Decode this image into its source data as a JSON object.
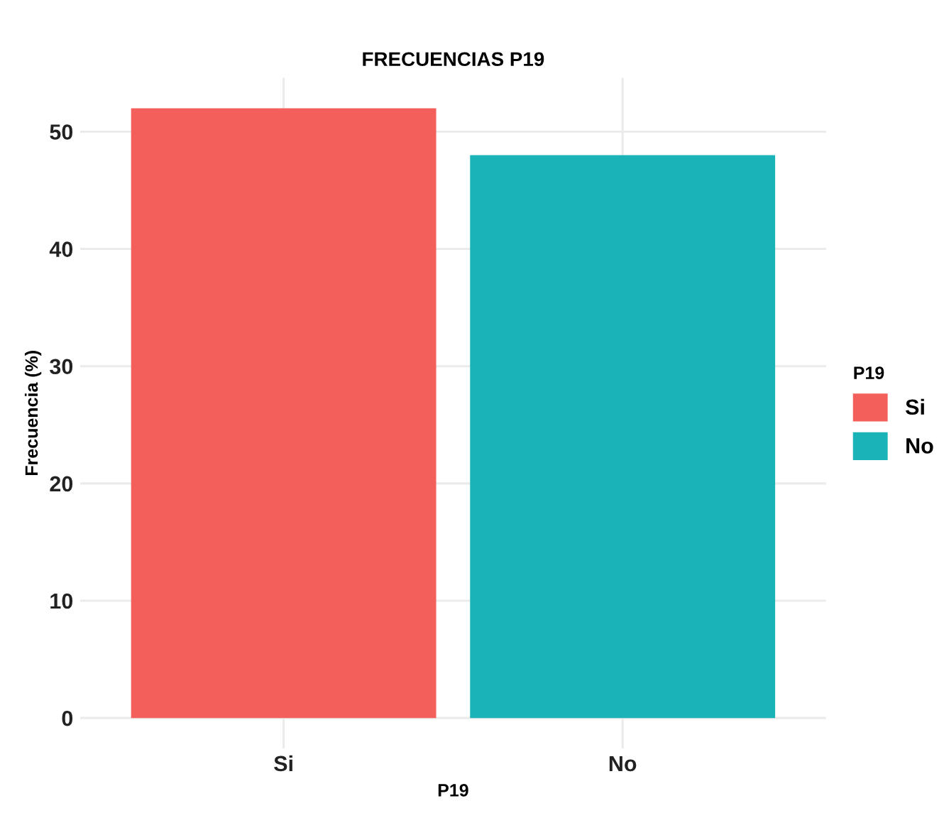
{
  "chart_data": {
    "type": "bar",
    "title": "FRECUENCIAS P19",
    "xlabel": "P19",
    "ylabel": "Frecuencia (%)",
    "legend_title": "P19",
    "categories": [
      "Si",
      "No"
    ],
    "series": [
      {
        "name": "Si",
        "color": "#f35f5a",
        "values": [
          52,
          null
        ]
      },
      {
        "name": "No",
        "color": "#19b3b8",
        "values": [
          null,
          48
        ]
      }
    ],
    "ylim": [
      -2.6,
      54.6
    ],
    "yticks": [
      0,
      10,
      20,
      30,
      40,
      50
    ],
    "grid": true,
    "legend": "right"
  }
}
